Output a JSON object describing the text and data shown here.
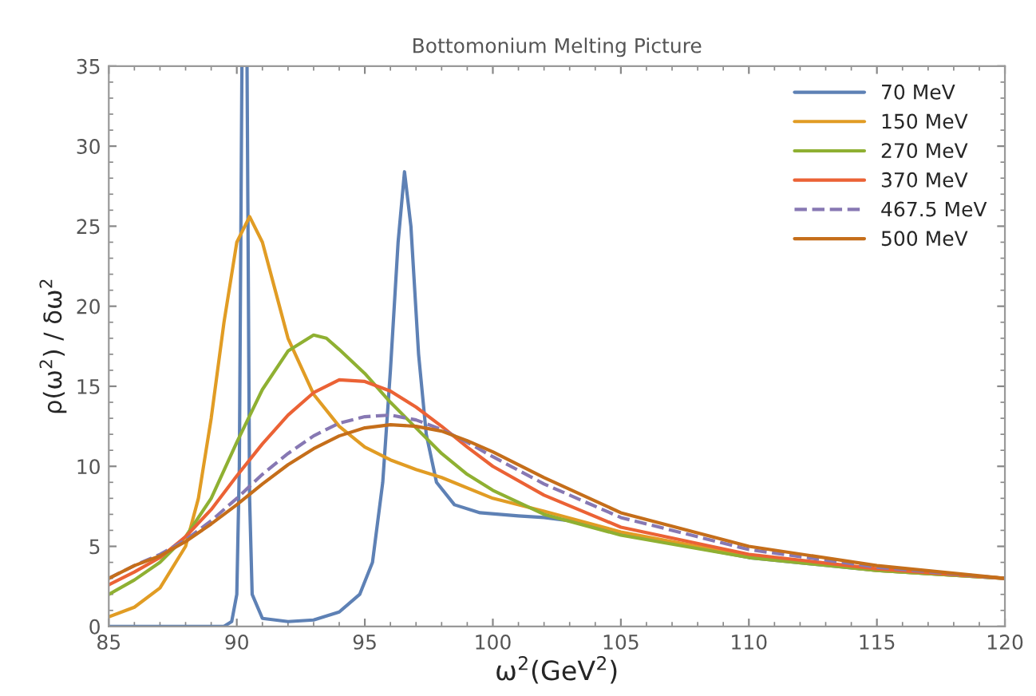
{
  "chart_data": {
    "type": "line",
    "title": "Bottomonium Melting Picture",
    "xlabel": "ω$^{2}$(GeV$^{2}$)",
    "ylabel": "ρ(ω$^{2}$) / δω$^{2}$",
    "xlim": [
      85,
      120
    ],
    "xticks": [
      85,
      90,
      95,
      100,
      105,
      110,
      115,
      120
    ],
    "ylim": [
      0,
      35
    ],
    "yticks": [
      0,
      5,
      10,
      15,
      20,
      25,
      30,
      35
    ],
    "grid": false,
    "legend": "top right",
    "marker": "none",
    "series": [
      {
        "name": "70 MeV",
        "color": "#5e81b5",
        "line_style": "solid",
        "x": [
          85,
          86,
          87,
          88,
          89,
          89.5,
          89.8,
          90.0,
          90.1,
          90.2,
          90.3,
          90.4,
          90.5,
          90.6,
          91,
          92,
          93,
          94,
          94.8,
          95.3,
          95.7,
          96,
          96.3,
          96.55,
          96.8,
          97.1,
          97.4,
          97.8,
          98.5,
          99.5,
          101,
          102,
          103,
          105,
          110,
          115,
          120
        ],
        "values": [
          0,
          0,
          0,
          0,
          0,
          0,
          0.3,
          2,
          10,
          35,
          null,
          35,
          8,
          2,
          0.5,
          0.3,
          0.4,
          0.9,
          2,
          4,
          9,
          16,
          24,
          28.4,
          25,
          17,
          12,
          9,
          7.6,
          7.1,
          6.9,
          6.8,
          6.6,
          5.8,
          4.3,
          3.5,
          3.0
        ]
      },
      {
        "name": "150 MeV",
        "color": "#e19c24",
        "line_style": "solid",
        "x": [
          85,
          86,
          87,
          88,
          88.5,
          89,
          89.5,
          90,
          90.5,
          91,
          91.5,
          92,
          93,
          94,
          95,
          96,
          97,
          98,
          100,
          102,
          105,
          110,
          115,
          120
        ],
        "values": [
          0.6,
          1.2,
          2.4,
          5,
          8,
          13,
          19,
          24,
          25.6,
          24,
          21,
          18,
          14.5,
          12.5,
          11.2,
          10.4,
          9.8,
          9.3,
          8.0,
          7.2,
          5.9,
          4.4,
          3.5,
          3.0
        ]
      },
      {
        "name": "270 MeV",
        "color": "#8fb032",
        "line_style": "solid",
        "x": [
          85,
          86,
          87,
          88,
          89,
          90,
          91,
          92,
          93,
          93.5,
          94,
          95,
          96,
          97,
          98,
          99,
          100,
          102,
          105,
          110,
          115,
          120
        ],
        "values": [
          2.0,
          2.9,
          4.0,
          5.6,
          8,
          11.5,
          14.8,
          17.2,
          18.2,
          18,
          17.3,
          15.8,
          14,
          12.4,
          10.8,
          9.5,
          8.5,
          7.0,
          5.7,
          4.3,
          3.5,
          3.0
        ]
      },
      {
        "name": "370 MeV",
        "color": "#eb6235",
        "line_style": "solid",
        "x": [
          85,
          86,
          87,
          88,
          89,
          90,
          91,
          92,
          93,
          94,
          95,
          96,
          97,
          98,
          99,
          100,
          102,
          105,
          110,
          115,
          120
        ],
        "values": [
          2.6,
          3.4,
          4.3,
          5.6,
          7.3,
          9.4,
          11.4,
          13.2,
          14.6,
          15.4,
          15.3,
          14.7,
          13.7,
          12.5,
          11.2,
          10.0,
          8.2,
          6.2,
          4.5,
          3.6,
          3.0
        ]
      },
      {
        "name": "467.5 MeV",
        "color": "#8778b3",
        "line_style": "dashed",
        "x": [
          85,
          86,
          87,
          88,
          89,
          90,
          91,
          92,
          93,
          94,
          95,
          96,
          97,
          98,
          99,
          100,
          102,
          105,
          110,
          115,
          120
        ],
        "values": [
          3.0,
          3.8,
          4.5,
          5.4,
          6.6,
          8.0,
          9.5,
          10.8,
          11.9,
          12.7,
          13.1,
          13.2,
          12.9,
          12.3,
          11.5,
          10.6,
          8.9,
          6.8,
          4.8,
          3.7,
          3.0
        ]
      },
      {
        "name": "500 MeV",
        "color": "#c56e1a",
        "line_style": "solid",
        "x": [
          85,
          86,
          87,
          88,
          89,
          90,
          91,
          92,
          93,
          94,
          95,
          96,
          97,
          98,
          99,
          100,
          102,
          105,
          110,
          115,
          120
        ],
        "values": [
          3.0,
          3.8,
          4.4,
          5.3,
          6.4,
          7.6,
          8.9,
          10.1,
          11.1,
          11.9,
          12.4,
          12.6,
          12.5,
          12.2,
          11.6,
          10.9,
          9.3,
          7.1,
          5.0,
          3.8,
          3.0
        ]
      }
    ]
  }
}
